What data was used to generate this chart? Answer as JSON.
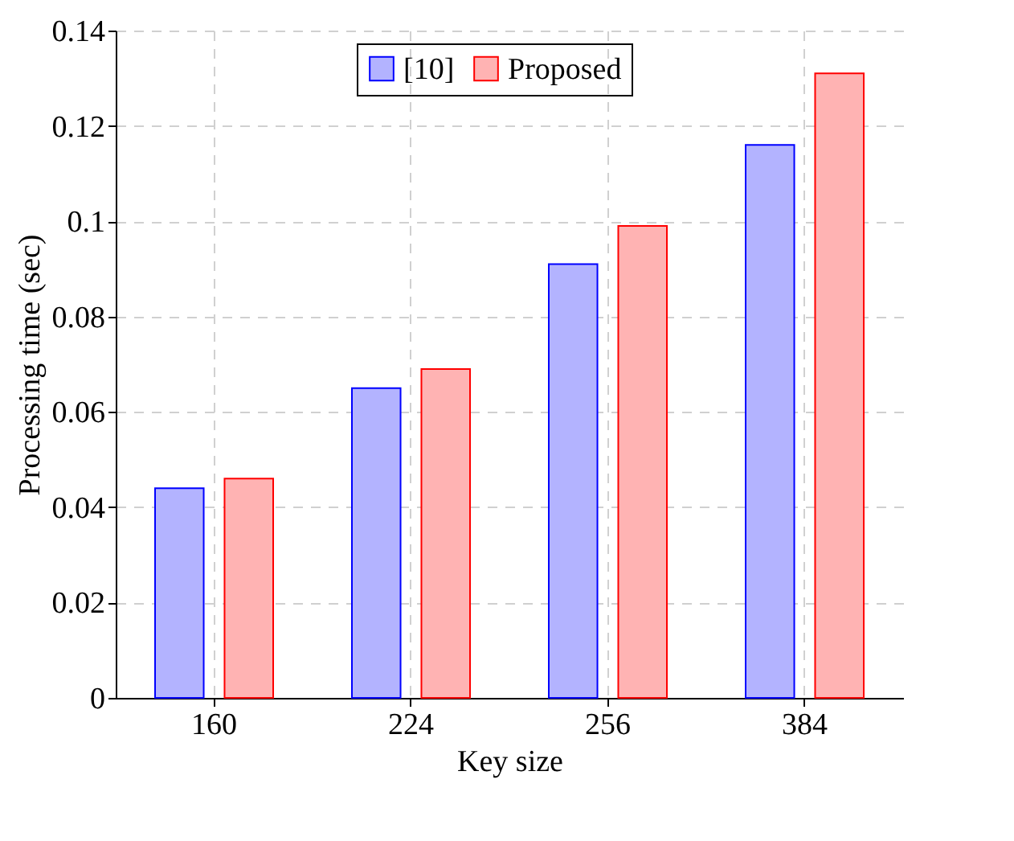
{
  "chart_data": {
    "type": "bar",
    "xlabel": "Key size",
    "ylabel": "Processing time (sec)",
    "categories": [
      "160",
      "224",
      "256",
      "384"
    ],
    "series": [
      {
        "name": "[10]",
        "color": "#b3b3ff",
        "values": [
          0.044,
          0.065,
          0.091,
          0.116
        ]
      },
      {
        "name": "Proposed",
        "color": "#ffb3b3",
        "values": [
          0.046,
          0.069,
          0.099,
          0.131
        ]
      }
    ],
    "ylim": [
      0,
      0.14
    ],
    "yticks": [
      0,
      0.02,
      0.04,
      0.06,
      0.08,
      0.1,
      0.12,
      0.14
    ],
    "grid": true,
    "legend": "top"
  }
}
